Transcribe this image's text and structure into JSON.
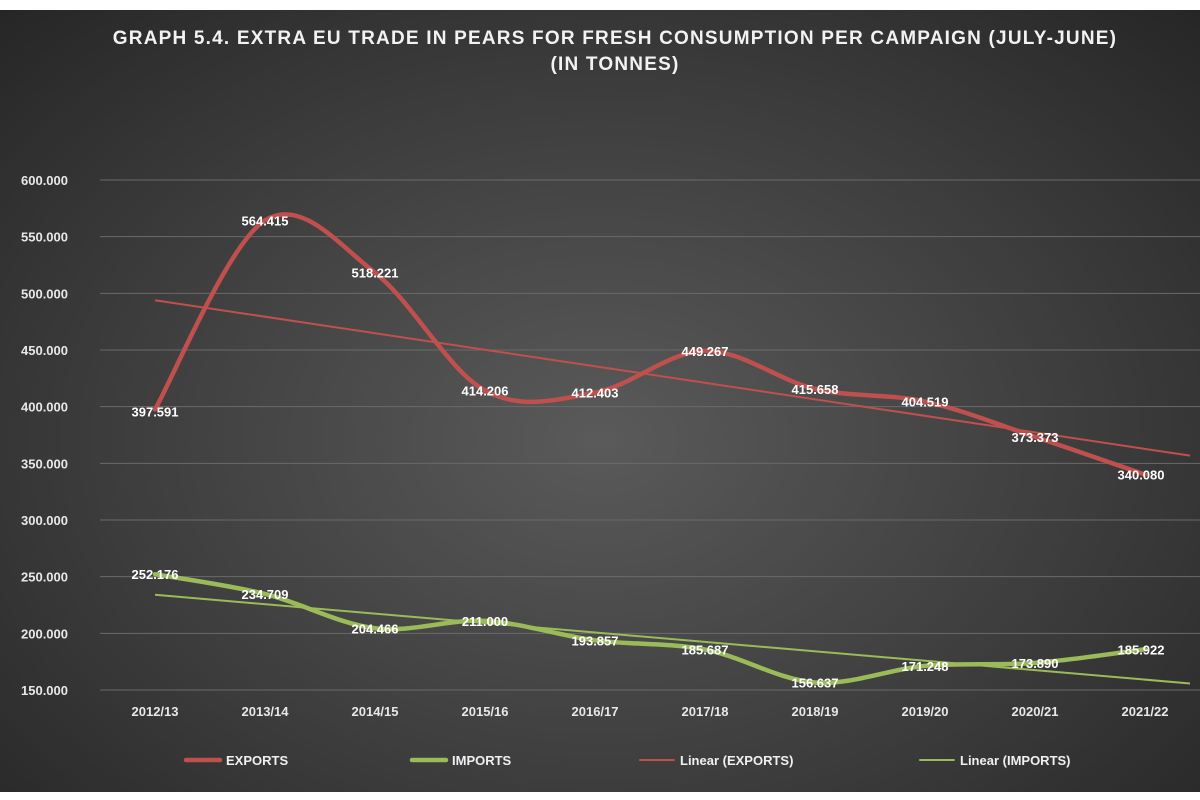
{
  "chart_data": {
    "type": "line",
    "title": "GRAPH 5.4. EXTRA EU TRADE IN PEARS FOR FRESH CONSUMPTION PER CAMPAIGN (JULY-JUNE)",
    "subtitle": "(IN TONNES)",
    "xlabel": "",
    "ylabel": "",
    "ylim": [
      150000,
      600000
    ],
    "yticks": [
      150000,
      200000,
      250000,
      300000,
      350000,
      400000,
      450000,
      500000,
      550000,
      600000
    ],
    "ytick_labels": [
      "150.000",
      "200.000",
      "250.000",
      "300.000",
      "350.000",
      "400.000",
      "450.000",
      "500.000",
      "550.000",
      "600.000"
    ],
    "grid": true,
    "legend_position": "bottom",
    "categories": [
      "2012/13",
      "2013/14",
      "2014/15",
      "2015/16",
      "2016/17",
      "2017/18",
      "2018/19",
      "2019/20",
      "2020/21",
      "2021/22"
    ],
    "series": [
      {
        "name": "EXPORTS",
        "color": "#c0504d",
        "values": [
          397591,
          564415,
          518221,
          414206,
          412403,
          449267,
          415658,
          404519,
          373373,
          340080
        ],
        "labels": [
          "397.591",
          "564.415",
          "518.221",
          "414.206",
          "412.403",
          "449.267",
          "415.658",
          "404.519",
          "373.373",
          "340.080"
        ]
      },
      {
        "name": "IMPORTS",
        "color": "#9bbb59",
        "values": [
          252176,
          234709,
          204466,
          211000,
          193857,
          185687,
          156637,
          171248,
          173890,
          185922
        ],
        "labels": [
          "252.176",
          "234.709",
          "204.466",
          "211.000",
          "193.857",
          "185.687",
          "156.637",
          "171.248",
          "173.890",
          "185.922"
        ]
      }
    ],
    "trendlines": [
      {
        "name": "Linear (EXPORTS)",
        "of": "EXPORTS",
        "color": "#c0504d"
      },
      {
        "name": "Linear (IMPORTS)",
        "of": "IMPORTS",
        "color": "#9bbb59"
      }
    ]
  }
}
